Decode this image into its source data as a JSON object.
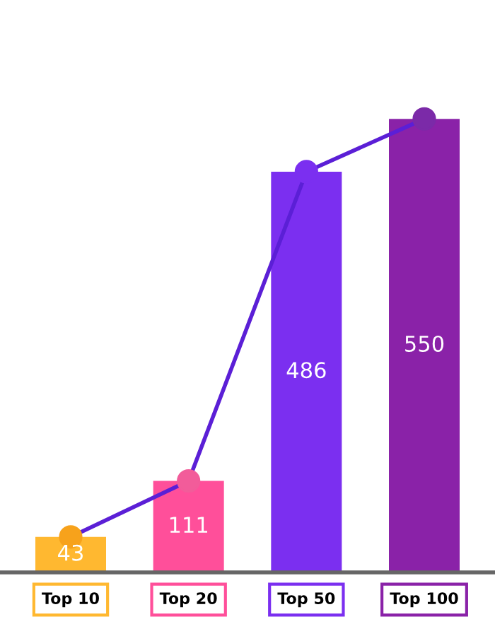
{
  "chart_data": {
    "type": "bar",
    "categories": [
      "Top 10",
      "Top 20",
      "Top 50",
      "Top 100"
    ],
    "series": [
      {
        "value_labels": [
          "43",
          "111",
          "486",
          "550"
        ],
        "colors": [
          "#ffb830",
          "#ff4f9a",
          "#7b2ff0",
          "#8a22a8"
        ],
        "values": [
          43,
          111,
          486,
          550
        ]
      },
      {
        "type": "line",
        "color": "#5b1fd6",
        "colors": [
          "#f7a21b",
          "#f25c9a",
          "#7b2ff0",
          "#7b2aa8"
        ],
        "values": [
          43,
          111,
          486,
          550
        ]
      }
    ],
    "marker": "circle",
    "line_style": "solid"
  }
}
